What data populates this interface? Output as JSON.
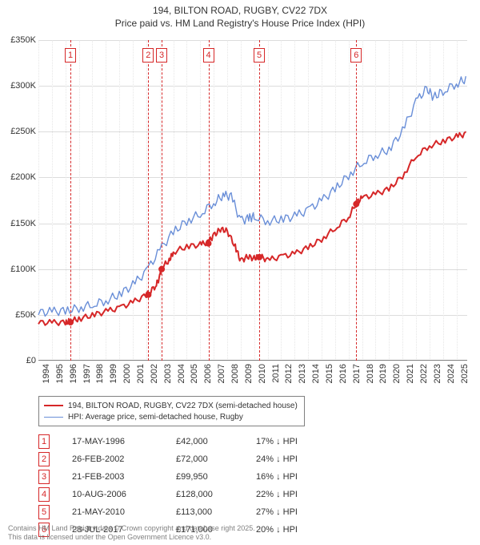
{
  "title_line1": "194, BILTON ROAD, RUGBY, CV22 7DX",
  "title_line2": "Price paid vs. HM Land Registry's House Price Index (HPI)",
  "chart": {
    "type": "line",
    "x_range": [
      1994,
      2025.8
    ],
    "y_range": [
      0,
      350000
    ],
    "ytick_step": 50000,
    "ytick_labels": [
      "£0",
      "£50K",
      "£100K",
      "£150K",
      "£200K",
      "£250K",
      "£300K",
      "£350K"
    ],
    "xticks": [
      1994,
      1995,
      1996,
      1997,
      1998,
      1999,
      2000,
      2001,
      2002,
      2003,
      2004,
      2005,
      2006,
      2007,
      2008,
      2009,
      2010,
      2011,
      2012,
      2013,
      2014,
      2015,
      2016,
      2017,
      2018,
      2019,
      2020,
      2021,
      2022,
      2023,
      2024,
      2025
    ],
    "background_color": "#ffffff",
    "major_grid_color": "#808080",
    "minor_grid_color": "#e6e6e6",
    "series": [
      {
        "name": "194, BILTON ROAD, RUGBY, CV22 7DX (semi-detached house)",
        "color": "#d62728",
        "width": 2,
        "marker_color": "#d62728",
        "marker_radius": 4,
        "markers_at_events": true,
        "data": [
          [
            1994.0,
            40000
          ],
          [
            1995.0,
            40000
          ],
          [
            1996.0,
            40000
          ],
          [
            1996.38,
            42000
          ],
          [
            1997.0,
            44000
          ],
          [
            1998.0,
            48000
          ],
          [
            1999.0,
            52000
          ],
          [
            2000.0,
            56000
          ],
          [
            2001.0,
            62000
          ],
          [
            2002.0,
            70000
          ],
          [
            2002.15,
            72000
          ],
          [
            2002.7,
            80000
          ],
          [
            2003.0,
            90000
          ],
          [
            2003.14,
            99950
          ],
          [
            2003.7,
            108000
          ],
          [
            2004.0,
            117000
          ],
          [
            2005.0,
            123000
          ],
          [
            2006.0,
            125000
          ],
          [
            2006.6,
            128000
          ],
          [
            2007.0,
            135000
          ],
          [
            2007.5,
            142000
          ],
          [
            2008.0,
            140000
          ],
          [
            2008.6,
            123000
          ],
          [
            2009.0,
            107000
          ],
          [
            2009.5,
            112000
          ],
          [
            2010.0,
            110000
          ],
          [
            2010.38,
            113000
          ],
          [
            2011.0,
            108000
          ],
          [
            2012.0,
            112000
          ],
          [
            2013.0,
            115000
          ],
          [
            2014.0,
            122000
          ],
          [
            2015.0,
            131000
          ],
          [
            2016.0,
            143000
          ],
          [
            2017.0,
            155000
          ],
          [
            2017.57,
            171000
          ],
          [
            2018.0,
            176000
          ],
          [
            2019.0,
            180000
          ],
          [
            2020.0,
            186000
          ],
          [
            2021.0,
            200000
          ],
          [
            2022.0,
            222000
          ],
          [
            2023.0,
            233000
          ],
          [
            2024.0,
            238000
          ],
          [
            2025.0,
            243000
          ],
          [
            2025.7,
            246000
          ]
        ]
      },
      {
        "name": "HPI: Average price, semi-detached house, Rugby",
        "color": "#6a8fd8",
        "width": 1.4,
        "data": [
          [
            1994.0,
            50000
          ],
          [
            1995.0,
            51000
          ],
          [
            1996.0,
            52000
          ],
          [
            1997.0,
            55000
          ],
          [
            1998.0,
            59000
          ],
          [
            1999.0,
            63000
          ],
          [
            2000.0,
            70000
          ],
          [
            2001.0,
            80000
          ],
          [
            2002.0,
            95000
          ],
          [
            2003.0,
            118000
          ],
          [
            2004.0,
            138000
          ],
          [
            2005.0,
            150000
          ],
          [
            2006.0,
            158000
          ],
          [
            2007.0,
            170000
          ],
          [
            2007.7,
            178000
          ],
          [
            2008.3,
            177000
          ],
          [
            2009.0,
            150000
          ],
          [
            2009.6,
            153000
          ],
          [
            2010.0,
            155000
          ],
          [
            2011.0,
            150000
          ],
          [
            2012.0,
            152000
          ],
          [
            2013.0,
            155000
          ],
          [
            2014.0,
            162000
          ],
          [
            2015.0,
            172000
          ],
          [
            2016.0,
            185000
          ],
          [
            2017.0,
            200000
          ],
          [
            2018.0,
            214000
          ],
          [
            2019.0,
            222000
          ],
          [
            2020.0,
            228000
          ],
          [
            2021.0,
            248000
          ],
          [
            2022.0,
            280000
          ],
          [
            2022.8,
            295000
          ],
          [
            2023.3,
            285000
          ],
          [
            2024.0,
            292000
          ],
          [
            2025.0,
            300000
          ],
          [
            2025.7,
            305000
          ]
        ]
      }
    ],
    "events": [
      {
        "n": "1",
        "x": 1996.38,
        "date": "17-MAY-1996",
        "price": "£42,000",
        "delta": "17% ↓ HPI"
      },
      {
        "n": "2",
        "x": 2002.15,
        "date": "26-FEB-2002",
        "price": "£72,000",
        "delta": "24% ↓ HPI"
      },
      {
        "n": "3",
        "x": 2003.14,
        "date": "21-FEB-2003",
        "price": "£99,950",
        "delta": "16% ↓ HPI"
      },
      {
        "n": "4",
        "x": 2006.61,
        "date": "10-AUG-2006",
        "price": "£128,000",
        "delta": "22% ↓ HPI"
      },
      {
        "n": "5",
        "x": 2010.38,
        "date": "21-MAY-2010",
        "price": "£113,000",
        "delta": "27% ↓ HPI"
      },
      {
        "n": "6",
        "x": 2017.57,
        "date": "28-JUL-2017",
        "price": "£171,000",
        "delta": "20% ↓ HPI"
      }
    ]
  },
  "legend": {
    "items": [
      {
        "color": "#d62728",
        "width": 2,
        "label": "194, BILTON ROAD, RUGBY, CV22 7DX (semi-detached house)"
      },
      {
        "color": "#6a8fd8",
        "width": 1.4,
        "label": "HPI: Average price, semi-detached house, Rugby"
      }
    ]
  },
  "footer_line1": "Contains HM Land Registry data © Crown copyright and database right 2025.",
  "footer_line2": "This data is licensed under the Open Government Licence v3.0."
}
